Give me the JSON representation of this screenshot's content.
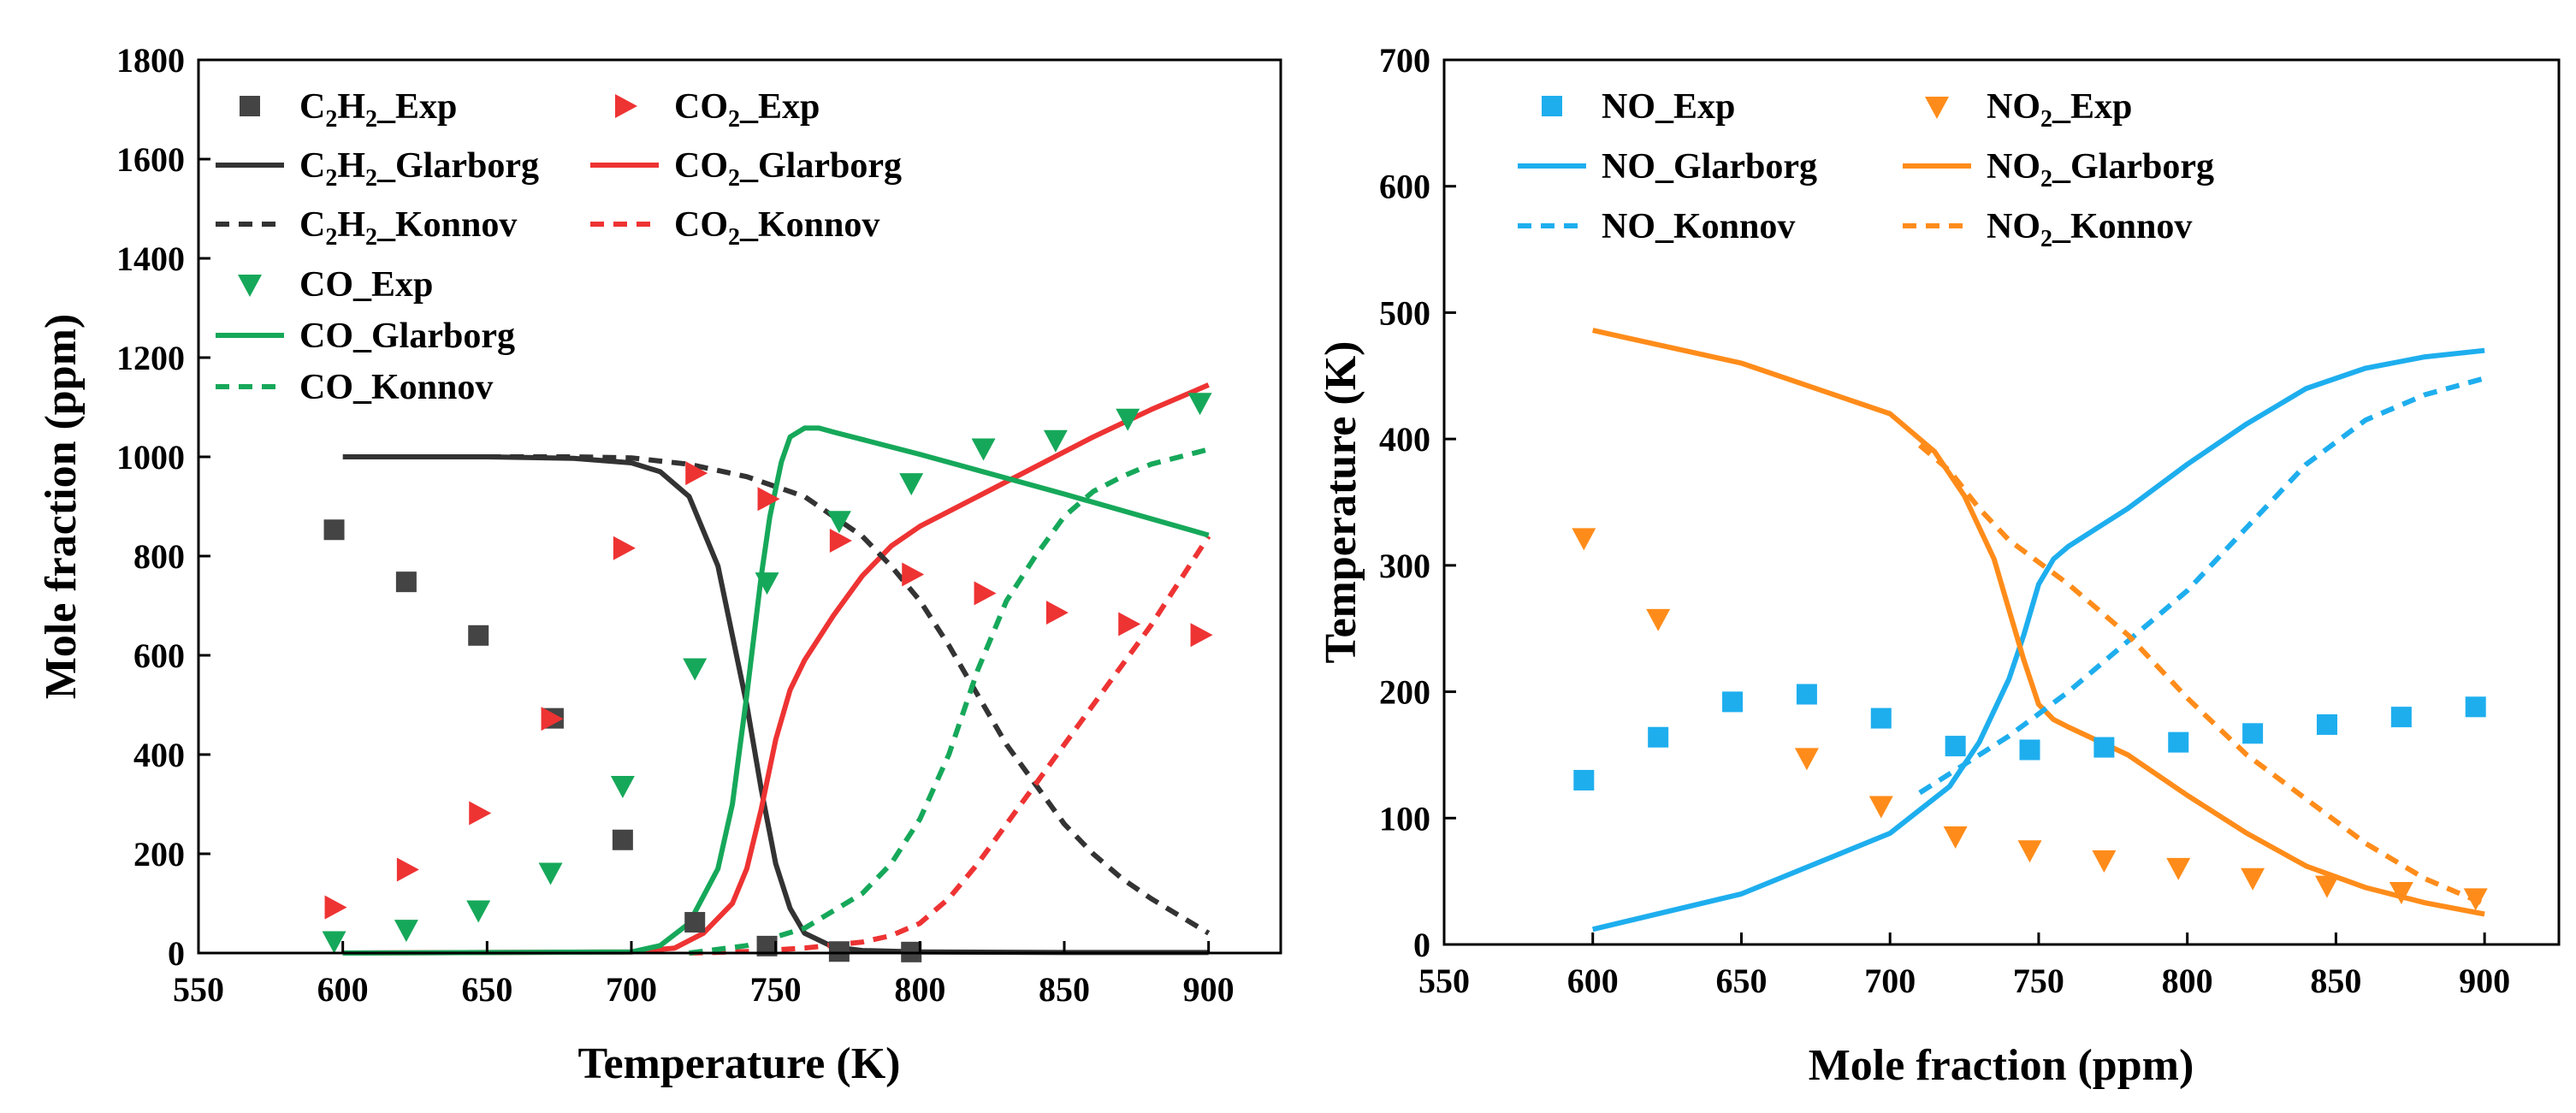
{
  "chart_data": [
    {
      "type": "scatter+line",
      "xlabel": "Temperature (K)",
      "ylabel": "Mole fraction (ppm)",
      "xlim": [
        550,
        925
      ],
      "ylim": [
        0,
        1800
      ],
      "xticks": [
        550,
        600,
        650,
        700,
        750,
        800,
        850,
        900
      ],
      "yticks": [
        0,
        200,
        400,
        600,
        800,
        1000,
        1200,
        1400,
        1600,
        1800
      ],
      "series": [
        {
          "name": "C2H2_Exp",
          "label": {
            "pre": "C",
            "sub1": "2",
            "mid": "H",
            "sub2": "2",
            "post": "_Exp"
          },
          "kind": "scatter",
          "marker": "square",
          "color": "#444444",
          "x": [
            597,
            622,
            647,
            673,
            697,
            722,
            747,
            772,
            797
          ],
          "y": [
            853,
            748,
            640,
            473,
            228,
            62,
            14,
            3,
            2
          ]
        },
        {
          "name": "CO2_Exp",
          "label": {
            "pre": "CO",
            "sub1": "2",
            "post": "_Exp"
          },
          "kind": "scatter",
          "marker": "triangle-right",
          "color": "#ee3333",
          "x": [
            597,
            622,
            647,
            672,
            697,
            722,
            747,
            772,
            797,
            822,
            847,
            872,
            897
          ],
          "y": [
            92,
            168,
            282,
            472,
            816,
            967,
            915,
            831,
            763,
            725,
            686,
            663,
            641
          ]
        },
        {
          "name": "CO_Exp",
          "label": {
            "pre": "CO_Exp"
          },
          "kind": "scatter",
          "marker": "triangle-down",
          "color": "#16a85a",
          "x": [
            597,
            622,
            647,
            672,
            697,
            722,
            747,
            772,
            797,
            822,
            847,
            872,
            897
          ],
          "y": [
            25,
            48,
            87,
            163,
            338,
            575,
            748,
            872,
            948,
            1018,
            1035,
            1078,
            1110
          ]
        },
        {
          "name": "C2H2_Glarborg",
          "label": {
            "pre": "C",
            "sub1": "2",
            "mid": "H",
            "sub2": "2",
            "post": "_Glarborg"
          },
          "kind": "line",
          "dash": "solid",
          "color": "#333333",
          "x": [
            600,
            650,
            680,
            700,
            710,
            720,
            730,
            740,
            745,
            750,
            755,
            760,
            770,
            780,
            800,
            850,
            900
          ],
          "y": [
            1000,
            1000,
            997,
            988,
            970,
            920,
            780,
            500,
            330,
            180,
            90,
            40,
            12,
            5,
            2,
            1,
            1
          ]
        },
        {
          "name": "CO2_Glarborg",
          "label": {
            "pre": "CO",
            "sub1": "2",
            "post": "_Glarborg"
          },
          "kind": "line",
          "dash": "solid",
          "color": "#ee3333",
          "x": [
            600,
            700,
            715,
            725,
            735,
            740,
            745,
            750,
            755,
            760,
            770,
            780,
            790,
            800,
            820,
            840,
            860,
            880,
            900
          ],
          "y": [
            0,
            2,
            10,
            40,
            100,
            170,
            290,
            430,
            530,
            590,
            680,
            760,
            820,
            860,
            920,
            980,
            1040,
            1095,
            1145
          ]
        },
        {
          "name": "C2H2_Konnov",
          "label": {
            "pre": "C",
            "sub1": "2",
            "mid": "H",
            "sub2": "2",
            "post": "_Konnov"
          },
          "kind": "line",
          "dash": "dash",
          "color": "#333333",
          "x": [
            650,
            680,
            700,
            720,
            740,
            760,
            770,
            780,
            790,
            800,
            810,
            820,
            830,
            840,
            850,
            860,
            870,
            880,
            890,
            900
          ],
          "y": [
            1000,
            1000,
            998,
            985,
            960,
            920,
            880,
            840,
            780,
            710,
            620,
            520,
            420,
            340,
            260,
            200,
            150,
            110,
            75,
            40
          ]
        },
        {
          "name": "CO2_Konnov",
          "label": {
            "pre": "CO",
            "sub1": "2",
            "post": "_Konnov"
          },
          "kind": "line",
          "dash": "dash",
          "color": "#ee3333",
          "x": [
            720,
            740,
            760,
            780,
            790,
            800,
            810,
            820,
            830,
            840,
            850,
            860,
            870,
            880,
            890,
            900
          ],
          "y": [
            0,
            3,
            10,
            22,
            35,
            60,
            110,
            180,
            260,
            340,
            420,
            500,
            580,
            660,
            750,
            840
          ]
        },
        {
          "name": "CO_Glarborg",
          "label": {
            "pre": "CO_Glarborg"
          },
          "kind": "line",
          "dash": "solid",
          "color": "#16a85a",
          "x": [
            600,
            700,
            710,
            720,
            730,
            735,
            740,
            745,
            748,
            752,
            755,
            760,
            765,
            770,
            780,
            800,
            850,
            900
          ],
          "y": [
            0,
            2,
            15,
            60,
            170,
            300,
            520,
            760,
            880,
            990,
            1040,
            1058,
            1058,
            1050,
            1035,
            1005,
            925,
            842
          ]
        },
        {
          "name": "CO_Konnov",
          "label": {
            "pre": "CO_Konnov"
          },
          "kind": "line",
          "dash": "dash",
          "color": "#16a85a",
          "x": [
            720,
            740,
            760,
            780,
            790,
            800,
            810,
            820,
            830,
            840,
            850,
            860,
            870,
            880,
            890,
            900
          ],
          "y": [
            0,
            15,
            50,
            120,
            180,
            270,
            400,
            570,
            710,
            800,
            880,
            930,
            960,
            985,
            1000,
            1015
          ]
        }
      ]
    },
    {
      "type": "scatter+line",
      "xlabel": "Mole fraction (ppm)",
      "ylabel": "Temperature (K)",
      "xlim": [
        550,
        925
      ],
      "ylim": [
        0,
        700
      ],
      "xticks": [
        550,
        600,
        650,
        700,
        750,
        800,
        850,
        900
      ],
      "yticks": [
        0,
        100,
        200,
        300,
        400,
        500,
        600,
        700
      ],
      "series": [
        {
          "name": "NO_Exp",
          "label": {
            "pre": "NO_Exp"
          },
          "kind": "scatter",
          "marker": "square",
          "color": "#1eaeee",
          "x": [
            597,
            622,
            647,
            672,
            697,
            722,
            747,
            772,
            797,
            822,
            847,
            872,
            897
          ],
          "y": [
            130,
            164,
            192,
            198,
            179,
            157,
            154,
            156,
            160,
            167,
            174,
            180,
            188
          ]
        },
        {
          "name": "NO2_Exp",
          "label": {
            "pre": "NO",
            "sub1": "2",
            "post": "_Exp"
          },
          "kind": "scatter",
          "marker": "triangle-down",
          "color": "#ff8c1a",
          "x": [
            597,
            622,
            672,
            697,
            722,
            747,
            772,
            797,
            822,
            847,
            872,
            897
          ],
          "y": [
            322,
            258,
            148,
            110,
            86,
            75,
            67,
            61,
            53,
            47,
            42,
            37
          ]
        },
        {
          "name": "NO_Glarborg",
          "label": {
            "pre": "NO_Glarborg"
          },
          "kind": "line",
          "dash": "solid",
          "color": "#1eaeee",
          "x": [
            600,
            650,
            700,
            720,
            730,
            740,
            745,
            750,
            755,
            760,
            770,
            780,
            800,
            820,
            840,
            860,
            880,
            900
          ],
          "y": [
            12,
            40,
            88,
            125,
            160,
            210,
            245,
            285,
            305,
            315,
            330,
            345,
            380,
            412,
            440,
            456,
            465,
            470
          ]
        },
        {
          "name": "NO2_Glarborg",
          "label": {
            "pre": "NO",
            "sub1": "2",
            "post": "_Glarborg"
          },
          "kind": "line",
          "dash": "solid",
          "color": "#ff8c1a",
          "x": [
            600,
            650,
            700,
            715,
            725,
            735,
            740,
            745,
            750,
            755,
            760,
            780,
            800,
            820,
            840,
            860,
            880,
            900
          ],
          "y": [
            486,
            460,
            420,
            390,
            355,
            305,
            265,
            225,
            190,
            178,
            172,
            150,
            118,
            88,
            62,
            45,
            33,
            24
          ]
        },
        {
          "name": "NO_Konnov",
          "label": {
            "pre": "NO_Konnov"
          },
          "kind": "line",
          "dash": "dash",
          "color": "#1eaeee",
          "x": [
            710,
            720,
            740,
            760,
            780,
            800,
            820,
            840,
            860,
            880,
            900
          ],
          "y": [
            120,
            135,
            165,
            200,
            240,
            280,
            330,
            380,
            415,
            435,
            448
          ]
        },
        {
          "name": "NO2_Konnov",
          "label": {
            "pre": "NO",
            "sub1": "2",
            "post": "_Konnov"
          },
          "kind": "line",
          "dash": "dash",
          "color": "#ff8c1a",
          "x": [
            710,
            720,
            730,
            740,
            760,
            780,
            800,
            820,
            840,
            860,
            880,
            900
          ],
          "y": [
            395,
            375,
            345,
            320,
            285,
            245,
            195,
            150,
            115,
            80,
            52,
            32
          ]
        }
      ]
    }
  ]
}
